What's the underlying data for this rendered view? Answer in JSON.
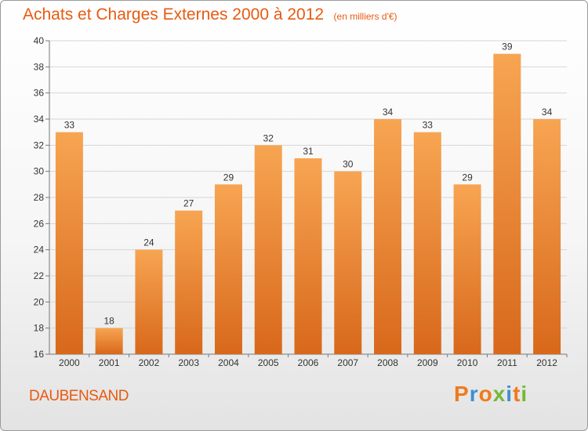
{
  "header": {
    "title": "Achats et Charges Externes 2000 à 2012",
    "subtitle": "(en milliers d'€)"
  },
  "footer": {
    "commune": "DAUBENSAND",
    "brand": "Proxiti"
  },
  "colors": {
    "accent": "#e85a10",
    "bar_top": "#f7a552",
    "bar_bottom": "#d8681b",
    "brand_letters": [
      "#f07a1a",
      "#3f8fd0",
      "#f07a1a",
      "#74b83a",
      "#3f8fd0",
      "#f07a1a",
      "#74b83a"
    ]
  },
  "chart_data": {
    "type": "bar",
    "categories": [
      "2000",
      "2001",
      "2002",
      "2003",
      "2004",
      "2005",
      "2006",
      "2007",
      "2008",
      "2009",
      "2010",
      "2011",
      "2012"
    ],
    "values": [
      33,
      18,
      24,
      27,
      29,
      32,
      31,
      30,
      34,
      33,
      29,
      39,
      34
    ],
    "title": "Achats et Charges Externes 2000 à 2012",
    "ylim": [
      16,
      40
    ],
    "yticks": [
      16,
      18,
      20,
      22,
      24,
      26,
      28,
      30,
      32,
      34,
      36,
      38,
      40
    ],
    "grid": true,
    "legend": "none"
  }
}
